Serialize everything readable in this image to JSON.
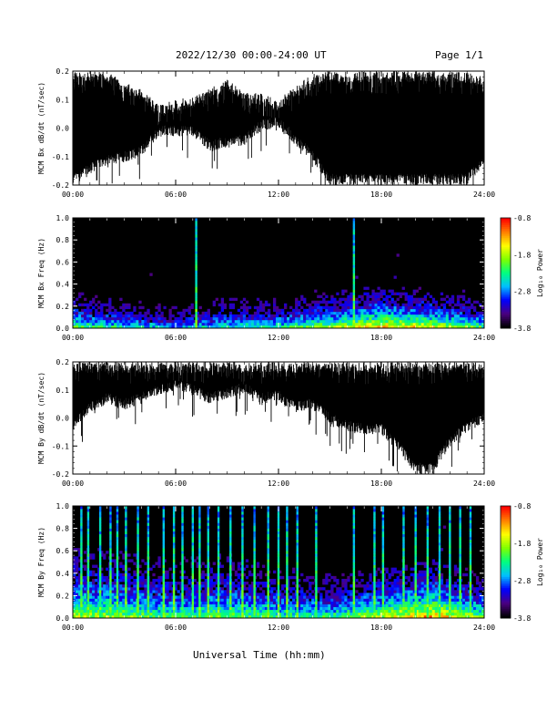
{
  "header": {
    "title": "2022/12/30  00:00-24:00 UT",
    "page": "Page 1/1"
  },
  "footer": {
    "xlabel": "Universal Time (hh:mm)"
  },
  "colors": {
    "trace": "#000000",
    "spectrogram_background": "#000000",
    "colormap": [
      "#000000",
      "#4b0082",
      "#0000ff",
      "#00bfff",
      "#00ff7f",
      "#7fff00",
      "#ffff00",
      "#ff7f00",
      "#ff0000"
    ]
  },
  "chart_data": [
    {
      "type": "line",
      "panel": "bx-timeseries",
      "ylabel": "MCM Bx dB/dt (nT/sec)",
      "ylim": [
        -0.2,
        0.2
      ],
      "yticks": [
        "0.2",
        "0.1",
        "0.0",
        "-0.1",
        "-0.2"
      ],
      "xticks": [
        "00:00",
        "06:00",
        "12:00",
        "18:00",
        "24:00"
      ],
      "xlim": [
        0,
        24
      ],
      "envelope": {
        "hours": [
          0,
          2,
          3,
          4,
          5,
          6,
          7,
          8,
          9,
          10,
          11,
          12,
          13,
          14,
          15,
          16,
          17,
          18,
          19,
          20,
          21,
          22,
          23,
          24
        ],
        "upper": [
          0.2,
          0.2,
          0.16,
          0.14,
          0.08,
          0.1,
          0.11,
          0.14,
          0.17,
          0.13,
          0.12,
          0.1,
          0.15,
          0.19,
          0.2,
          0.2,
          0.2,
          0.2,
          0.2,
          0.2,
          0.2,
          0.2,
          0.2,
          0.18
        ],
        "lower": [
          -0.2,
          -0.13,
          -0.12,
          -0.1,
          -0.03,
          -0.03,
          -0.03,
          -0.08,
          -0.07,
          -0.06,
          -0.01,
          0.0,
          -0.06,
          -0.12,
          -0.2,
          -0.2,
          -0.2,
          -0.2,
          -0.2,
          -0.2,
          -0.2,
          -0.2,
          -0.2,
          -0.13
        ]
      }
    },
    {
      "type": "heatmap",
      "panel": "bx-spectrogram",
      "ylabel": "MCM Bx Freq (Hz)",
      "ylim": [
        0,
        1.0
      ],
      "yticks": [
        "1.0",
        "0.8",
        "0.6",
        "0.4",
        "0.2",
        "0.0"
      ],
      "xticks": [
        "00:00",
        "06:00",
        "12:00",
        "18:00",
        "24:00"
      ],
      "xlim": [
        0,
        24
      ],
      "colorbar_label": "Log₁₀ Power",
      "colorbar_ticks": [
        "-0.8",
        "-1.8",
        "-2.8",
        "-3.8"
      ],
      "colorbar_range": [
        -3.8,
        -0.8
      ],
      "lines_hours": [
        7.2,
        16.4
      ],
      "activity": {
        "hours": [
          0,
          3,
          6,
          9,
          12,
          15,
          18,
          21,
          24
        ],
        "cutoff_hz": [
          0.25,
          0.2,
          0.15,
          0.22,
          0.2,
          0.25,
          0.3,
          0.25,
          0.2
        ],
        "intensity": [
          0.6,
          0.5,
          0.4,
          0.5,
          0.55,
          0.7,
          0.85,
          0.8,
          0.6
        ]
      }
    },
    {
      "type": "line",
      "panel": "by-timeseries",
      "ylabel": "MCM By dB/dt (nT/sec)",
      "ylim": [
        -0.2,
        0.2
      ],
      "yticks": [
        "0.2",
        "0.1",
        "0.0",
        "-0.1",
        "-0.2"
      ],
      "xticks": [
        "00:00",
        "06:00",
        "12:00",
        "18:00",
        "24:00"
      ],
      "xlim": [
        0,
        24
      ],
      "envelope": {
        "hours": [
          0,
          1,
          2,
          3,
          4,
          5,
          6,
          7,
          8,
          9,
          10,
          11,
          12,
          13,
          14,
          15,
          16,
          17,
          18,
          19,
          20,
          21,
          22,
          23,
          24
        ],
        "upper": [
          0.2,
          0.2,
          0.2,
          0.2,
          0.2,
          0.2,
          0.2,
          0.2,
          0.2,
          0.2,
          0.2,
          0.2,
          0.2,
          0.2,
          0.2,
          0.2,
          0.2,
          0.2,
          0.2,
          0.2,
          0.2,
          0.2,
          0.2,
          0.2,
          0.2
        ],
        "lower": [
          -0.05,
          0.02,
          0.05,
          0.03,
          0.05,
          0.08,
          0.1,
          0.08,
          0.05,
          0.07,
          0.09,
          0.05,
          0.06,
          0.02,
          0.03,
          -0.02,
          -0.05,
          -0.06,
          -0.06,
          -0.12,
          -0.2,
          -0.2,
          -0.1,
          -0.05,
          -0.02
        ]
      }
    },
    {
      "type": "heatmap",
      "panel": "by-spectrogram",
      "ylabel": "MCM By Freq (Hz)",
      "ylim": [
        0,
        1.0
      ],
      "yticks": [
        "1.0",
        "0.8",
        "0.6",
        "0.4",
        "0.2",
        "0.0"
      ],
      "xticks": [
        "00:00",
        "06:00",
        "12:00",
        "18:00",
        "24:00"
      ],
      "xlim": [
        0,
        24
      ],
      "colorbar_label": "Log₁₀ Power",
      "colorbar_ticks": [
        "-0.8",
        "-1.8",
        "-2.8",
        "-3.8"
      ],
      "colorbar_range": [
        -3.8,
        -0.8
      ],
      "lines_hours": [
        0.5,
        0.9,
        1.6,
        2.2,
        2.6,
        3.1,
        3.8,
        4.4,
        5.3,
        5.9,
        6.4,
        7.0,
        7.4,
        7.9,
        8.5,
        9.2,
        9.9,
        10.6,
        11.4,
        12.0,
        12.5,
        13.1,
        14.2,
        16.4,
        17.6,
        18.1,
        19.3,
        20.0,
        20.7,
        21.4,
        22.0,
        22.6,
        23.2
      ],
      "activity": {
        "hours": [
          0,
          3,
          6,
          9,
          12,
          15,
          18,
          21,
          24
        ],
        "cutoff_hz": [
          0.5,
          0.45,
          0.4,
          0.45,
          0.35,
          0.3,
          0.35,
          0.4,
          0.3
        ],
        "intensity": [
          0.7,
          0.65,
          0.55,
          0.6,
          0.55,
          0.55,
          0.75,
          0.9,
          0.6
        ]
      }
    }
  ]
}
